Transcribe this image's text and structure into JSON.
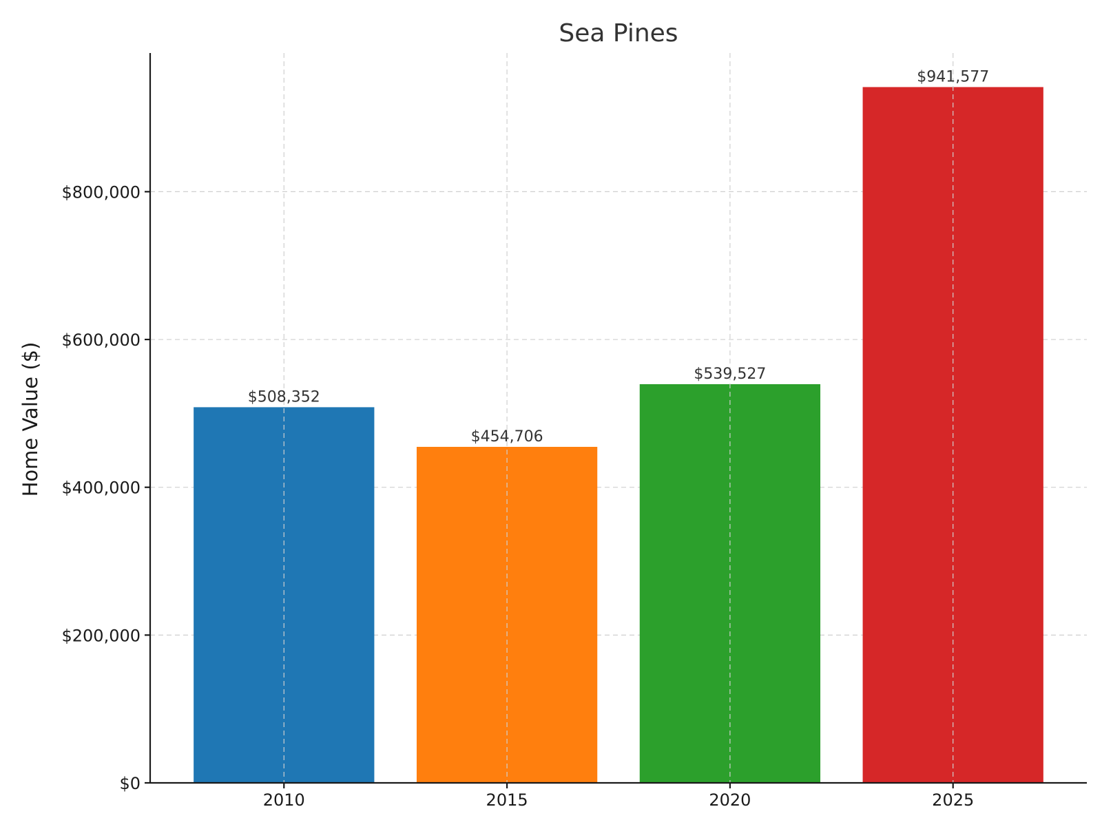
{
  "chart_data": {
    "type": "bar",
    "title": "Sea Pines",
    "xlabel": "",
    "ylabel": "Home Value ($)",
    "categories": [
      "2010",
      "2015",
      "2020",
      "2025"
    ],
    "values": [
      508352,
      454706,
      539527,
      941577
    ],
    "value_labels": [
      "$508,352",
      "$454,706",
      "$539,527",
      "$941,577"
    ],
    "colors": [
      "#1f77b4",
      "#ff7f0e",
      "#2ca02c",
      "#d62728"
    ],
    "ylim": [
      0,
      987656
    ],
    "yticks": [
      0,
      200000,
      400000,
      600000,
      800000
    ],
    "ytick_labels": [
      "$0",
      "$200,000",
      "$400,000",
      "$600,000",
      "$800,000"
    ],
    "grid": true,
    "legend": "none"
  }
}
